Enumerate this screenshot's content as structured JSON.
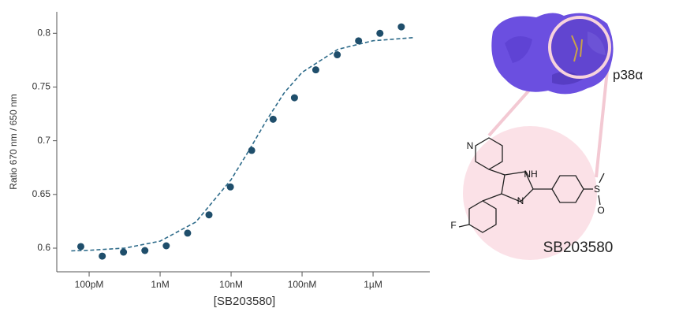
{
  "chart_data": {
    "type": "scatter",
    "x_label": "[SB203580]",
    "y_label": "Ratio 670 nm / 650 nm",
    "x_scale": "log",
    "x": [
      7.63e-11,
      1.53e-10,
      3.05e-10,
      6.1e-10,
      1.22e-09,
      2.44e-09,
      4.88e-09,
      9.77e-09,
      1.95e-08,
      3.91e-08,
      7.81e-08,
      1.56e-07,
      3.13e-07,
      6.25e-07,
      1.25e-06,
      2.5e-06
    ],
    "values": [
      0.6015,
      0.5926,
      0.5963,
      0.5978,
      0.6022,
      0.614,
      0.631,
      0.657,
      0.691,
      0.72,
      0.74,
      0.766,
      0.78,
      0.793,
      0.8,
      0.806
    ],
    "color": "#1f4e6b",
    "fit": {
      "x": [
        5.6e-11,
        1e-10,
        3.2e-10,
        1e-09,
        3.2e-09,
        1e-08,
        1.8e-08,
        3.2e-08,
        5.6e-08,
        1e-07,
        3.2e-07,
        1e-06,
        3.8e-06
      ],
      "values": [
        0.5975,
        0.598,
        0.6001,
        0.6065,
        0.6244,
        0.6637,
        0.6913,
        0.7196,
        0.7446,
        0.7637,
        0.7851,
        0.7931,
        0.796
      ],
      "color": "#2e6b8a"
    },
    "xlim": [
      3.5e-11,
      6.3e-06
    ],
    "xticks": [
      {
        "value": 1e-10,
        "label": "100pM"
      },
      {
        "value": 1e-09,
        "label": "1nM"
      },
      {
        "value": 1e-08,
        "label": "10nM"
      },
      {
        "value": 1e-07,
        "label": "100nM"
      },
      {
        "value": 1e-06,
        "label": "1µM"
      }
    ],
    "ylim": [
      0.578,
      0.82
    ],
    "yticks": [
      {
        "value": 0.6,
        "label": "0.6"
      },
      {
        "value": 0.65,
        "label": "0.65"
      },
      {
        "value": 0.7,
        "label": "0.7"
      },
      {
        "value": 0.75,
        "label": "0.75"
      },
      {
        "value": 0.8,
        "label": "0.8"
      }
    ]
  },
  "figure": {
    "protein_label": "p38α",
    "compound_label": "SB203580",
    "atoms": {
      "pyridine_n": "N",
      "imidazole_nh": "NH",
      "imidazole_n": "N",
      "fluorine": "F",
      "sulfur": "S",
      "oxygen": "O"
    }
  }
}
